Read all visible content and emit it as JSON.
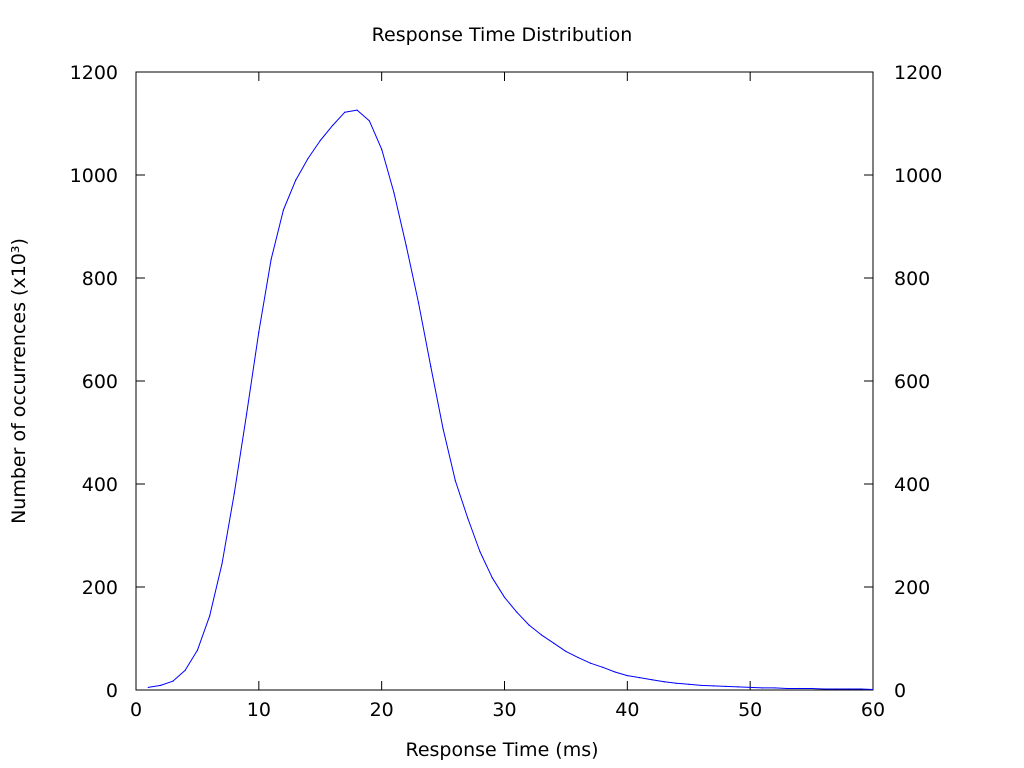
{
  "chart_data": {
    "type": "line",
    "title": "Response Time Distribution",
    "xlabel": "Response Time (ms)",
    "ylabel": "Number of occurrences (x10³)",
    "xlim": [
      0,
      60
    ],
    "ylim": [
      0,
      1200
    ],
    "x_ticks": [
      "0",
      "10",
      "20",
      "30",
      "40",
      "50",
      "60"
    ],
    "y_ticks": [
      "0",
      "200",
      "400",
      "600",
      "800",
      "1000",
      "1200"
    ],
    "y2_ticks": [
      "0",
      "200",
      "400",
      "600",
      "800",
      "1000",
      "1200"
    ],
    "grid": false,
    "legend": "none",
    "series": [
      {
        "color": "#0000ff",
        "x": [
          1,
          2,
          3,
          4,
          5,
          6,
          7,
          8,
          9,
          10,
          11,
          12,
          13,
          14,
          15,
          16,
          17,
          18,
          19,
          20,
          21,
          22,
          23,
          24,
          25,
          26,
          27,
          28,
          29,
          30,
          31,
          32,
          33,
          34,
          35,
          36,
          37,
          38,
          39,
          40,
          41,
          42,
          43,
          44,
          45,
          46,
          47,
          48,
          49,
          50,
          51,
          52,
          53,
          54,
          55,
          56,
          57,
          58,
          59,
          60
        ],
        "y": [
          5,
          9,
          17,
          38,
          77,
          144,
          245,
          382,
          536,
          695,
          836,
          932,
          990,
          1032,
          1067,
          1096,
          1122,
          1126,
          1105,
          1050,
          966,
          863,
          752,
          628,
          507,
          406,
          334,
          269,
          218,
          180,
          151,
          126,
          107,
          91,
          75,
          63,
          52,
          44,
          35,
          28,
          24,
          20,
          16,
          13,
          11,
          9,
          8,
          7,
          6,
          5,
          4,
          4,
          3,
          3,
          3,
          2,
          2,
          2,
          2,
          1
        ]
      }
    ]
  }
}
